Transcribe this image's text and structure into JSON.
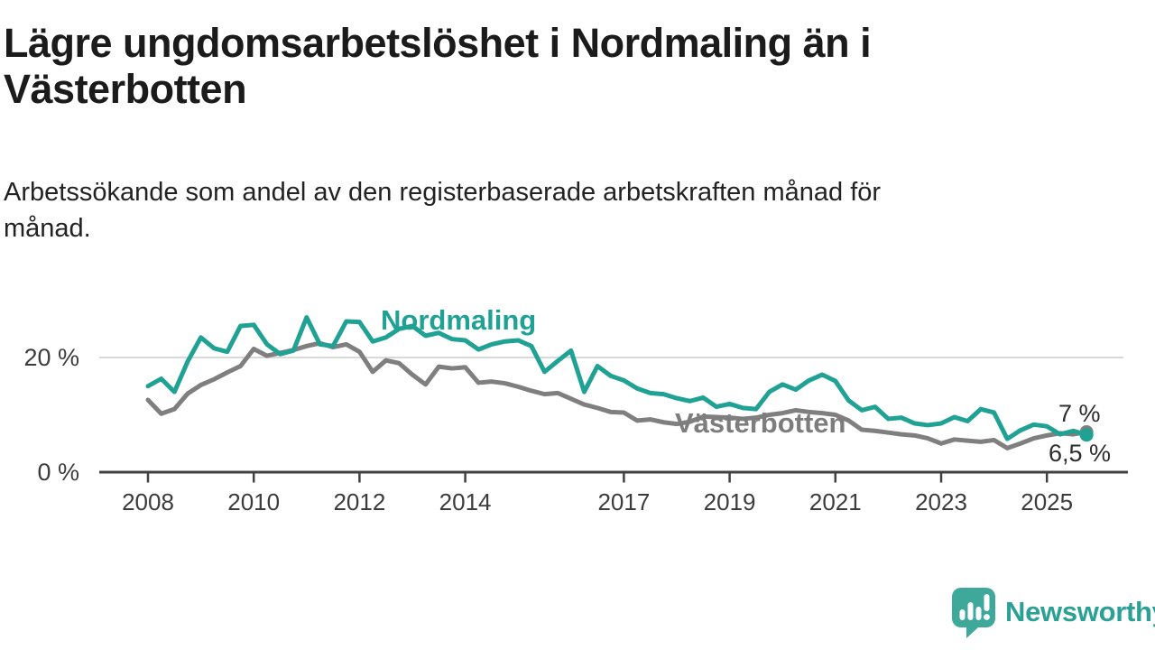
{
  "header": {
    "title_lines": [
      "Lägre ungdomsarbetslöshet i Nordmaling än i",
      "Västerbotten"
    ],
    "subtitle_lines": [
      "Arbetssökande som andel av den registerbaserade arbetskraften månad för",
      "månad."
    ]
  },
  "chart_data": {
    "type": "line",
    "title": "Lägre ungdomsarbetslöshet i Nordmaling än i Västerbotten",
    "subtitle": "Arbetssökande som andel av den registerbaserade arbetskraften månad för månad.",
    "x_unit": "year",
    "x_start": 2008.0,
    "x_step": 0.25,
    "x_end": 2025.75,
    "x_tick_years": [
      2008,
      2010,
      2012,
      2014,
      2017,
      2019,
      2021,
      2023,
      2025
    ],
    "x_tick_labels": [
      "2008",
      "2010",
      "2012",
      "2014",
      "2017",
      "2019",
      "2021",
      "2023",
      "2025"
    ],
    "y_tick_labels": [
      "20 %",
      "0 %"
    ],
    "ylim": [
      0,
      28
    ],
    "gridlines_y": [
      20
    ],
    "legend": "inline labels on lines; latest values annotated at line ends",
    "series": [
      {
        "name": "Nordmaling",
        "color": "#1fa294",
        "end_label": "6,5 %",
        "end_value": 6.5,
        "values": [
          15.0,
          16.3,
          14.0,
          19.3,
          23.5,
          21.6,
          21.0,
          25.5,
          25.7,
          22.3,
          20.6,
          21.2,
          27.0,
          22.3,
          22.0,
          26.3,
          26.2,
          22.8,
          23.5,
          25.0,
          25.5,
          23.8,
          24.3,
          23.2,
          23.0,
          21.4,
          22.3,
          22.8,
          23.0,
          22.0,
          17.5,
          19.4,
          21.2,
          14.0,
          18.5,
          16.8,
          16.0,
          14.6,
          13.8,
          13.6,
          12.9,
          12.4,
          13.0,
          11.4,
          11.9,
          11.2,
          11.0,
          14.0,
          15.3,
          14.4,
          16.0,
          17.0,
          15.9,
          12.5,
          10.8,
          11.4,
          9.3,
          9.5,
          8.5,
          8.2,
          8.5,
          9.6,
          8.9,
          11.0,
          10.4,
          5.8,
          7.3,
          8.3,
          8.0,
          6.6,
          7.2,
          6.5
        ]
      },
      {
        "name": "Västerbotten",
        "color": "#7f7f7f",
        "end_label": "7 %",
        "end_value": 7.0,
        "values": [
          12.6,
          10.2,
          11.0,
          13.7,
          15.2,
          16.2,
          17.4,
          18.5,
          21.5,
          20.3,
          20.8,
          21.3,
          22.0,
          22.5,
          21.8,
          22.3,
          21.0,
          17.5,
          19.5,
          19.0,
          17.0,
          15.3,
          18.4,
          18.1,
          18.3,
          15.6,
          15.8,
          15.5,
          14.9,
          14.2,
          13.6,
          13.8,
          12.8,
          11.8,
          11.2,
          10.5,
          10.4,
          9.0,
          9.2,
          8.7,
          8.4,
          8.8,
          9.7,
          9.6,
          9.5,
          9.3,
          9.5,
          10.0,
          10.3,
          10.8,
          10.5,
          10.3,
          10.0,
          9.0,
          7.4,
          7.2,
          6.9,
          6.6,
          6.4,
          5.9,
          5.0,
          5.7,
          5.5,
          5.3,
          5.6,
          4.2,
          5.0,
          5.9,
          6.4,
          6.8,
          6.6,
          7.0
        ]
      }
    ]
  },
  "colors": {
    "accent_teal": "#1fa294",
    "series_gray": "#7f7f7f",
    "grid": "#d9d9d9",
    "axis": "#404040",
    "tick_text": "#3c3c3c"
  },
  "branding": {
    "logo_text": "Newsworthy",
    "logo_icon": "speech-bubble-with-bar-chart-and-exclamation"
  }
}
